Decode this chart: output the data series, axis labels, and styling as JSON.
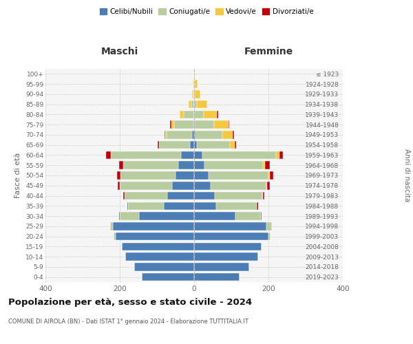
{
  "age_groups": [
    "0-4",
    "5-9",
    "10-14",
    "15-19",
    "20-24",
    "25-29",
    "30-34",
    "35-39",
    "40-44",
    "45-49",
    "50-54",
    "55-59",
    "60-64",
    "65-69",
    "70-74",
    "75-79",
    "80-84",
    "85-89",
    "90-94",
    "95-99",
    "100+"
  ],
  "birth_years": [
    "2019-2023",
    "2014-2018",
    "2009-2013",
    "2004-2008",
    "1999-2003",
    "1994-1998",
    "1989-1993",
    "1984-1988",
    "1979-1983",
    "1974-1978",
    "1969-1973",
    "1964-1968",
    "1959-1963",
    "1954-1958",
    "1949-1953",
    "1944-1948",
    "1939-1943",
    "1934-1938",
    "1929-1933",
    "1924-1928",
    "≤ 1923"
  ],
  "males": {
    "celibi": [
      140,
      162,
      185,
      195,
      212,
      218,
      148,
      82,
      72,
      60,
      50,
      42,
      35,
      12,
      6,
      2,
      0,
      0,
      0,
      0,
      0
    ],
    "coniugati": [
      0,
      0,
      0,
      0,
      4,
      8,
      52,
      95,
      115,
      140,
      148,
      148,
      190,
      82,
      68,
      52,
      28,
      8,
      2,
      2,
      0
    ],
    "vedovi": [
      0,
      0,
      0,
      0,
      0,
      0,
      0,
      0,
      0,
      0,
      0,
      0,
      0,
      0,
      4,
      8,
      10,
      6,
      3,
      2,
      1
    ],
    "divorziati": [
      0,
      0,
      0,
      0,
      0,
      0,
      2,
      3,
      4,
      5,
      10,
      12,
      12,
      4,
      2,
      2,
      0,
      0,
      0,
      0,
      0
    ]
  },
  "females": {
    "nubili": [
      122,
      148,
      172,
      182,
      200,
      195,
      112,
      60,
      55,
      45,
      38,
      28,
      22,
      8,
      4,
      2,
      0,
      0,
      0,
      0,
      0
    ],
    "coniugate": [
      0,
      0,
      0,
      0,
      5,
      14,
      68,
      108,
      128,
      150,
      162,
      158,
      198,
      88,
      72,
      52,
      26,
      8,
      2,
      2,
      0
    ],
    "vedove": [
      0,
      0,
      0,
      0,
      0,
      0,
      0,
      0,
      2,
      2,
      4,
      4,
      10,
      14,
      28,
      38,
      36,
      28,
      14,
      7,
      2
    ],
    "divorziate": [
      0,
      0,
      0,
      0,
      0,
      0,
      2,
      4,
      4,
      6,
      9,
      14,
      9,
      3,
      3,
      2,
      2,
      0,
      0,
      0,
      0
    ]
  },
  "colors": {
    "celibi_nubili": "#4d7db5",
    "coniugati": "#b8cca0",
    "vedovi": "#f5c842",
    "divorziati": "#c0000a"
  },
  "xlim": 400,
  "title_main": "Popolazione per età, sesso e stato civile - 2024",
  "title_sub": "COMUNE DI AIROLA (BN) - Dati ISTAT 1° gennaio 2024 - Elaborazione TUTTITALIA.IT",
  "ylabel_left": "Fasce di età",
  "ylabel_right": "Anni di nascita",
  "xlabel_left": "Maschi",
  "xlabel_right": "Femmine",
  "legend_labels": [
    "Celibi/Nubili",
    "Coniugati/e",
    "Vedovi/e",
    "Divorziati/e"
  ],
  "bg_color": "#f5f5f5"
}
